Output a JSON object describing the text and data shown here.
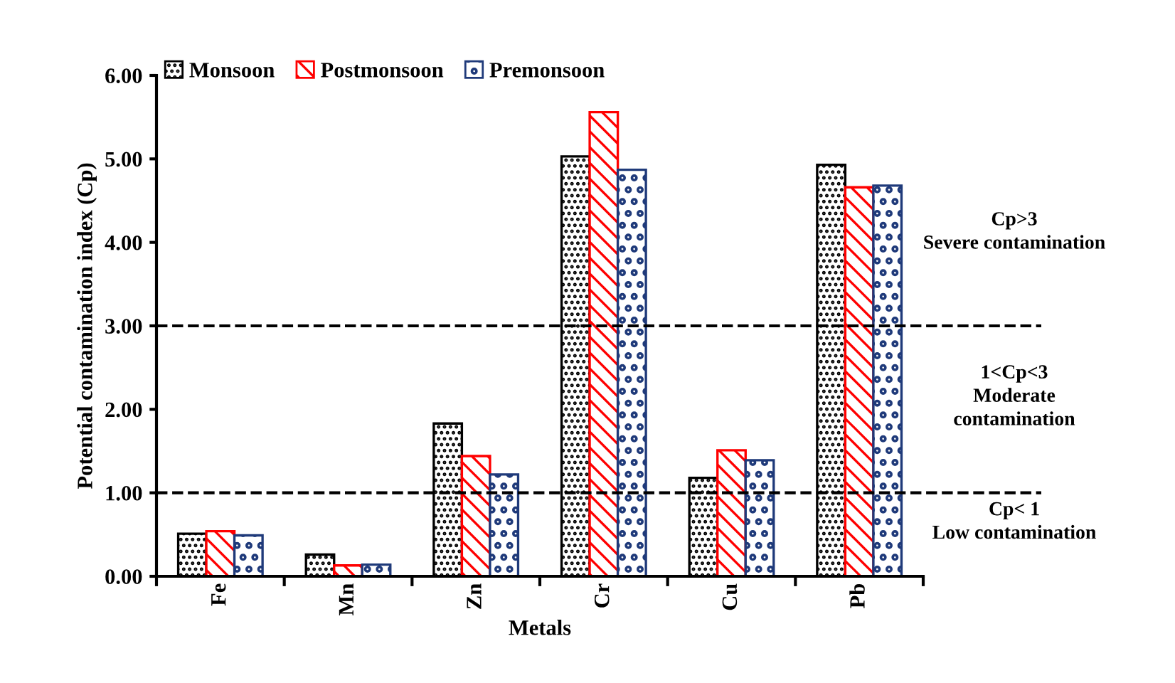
{
  "chart_data": {
    "type": "bar",
    "xlabel": "Metals",
    "ylabel": "Potential contamination index (Cp)",
    "categories": [
      "Fe",
      "Mn",
      "Zn",
      "Cr",
      "Cu",
      "Pb"
    ],
    "series": [
      {
        "name": "Monsoon",
        "color": "#000000",
        "values": [
          0.51,
          0.26,
          1.83,
          5.03,
          1.18,
          4.93
        ]
      },
      {
        "name": "Postmonsoon",
        "color": "#ff0000",
        "values": [
          0.54,
          0.13,
          1.44,
          5.56,
          1.51,
          4.66
        ]
      },
      {
        "name": "Premonsoon",
        "color": "#1f3a7a",
        "values": [
          0.49,
          0.14,
          1.22,
          4.87,
          1.39,
          4.68
        ]
      }
    ],
    "ylim": [
      0,
      6
    ],
    "yticks": [
      {
        "value": 0,
        "label": "0.00"
      },
      {
        "value": 1,
        "label": "1.00"
      },
      {
        "value": 2,
        "label": "2.00"
      },
      {
        "value": 3,
        "label": "3.00"
      },
      {
        "value": 4,
        "label": "4.00"
      },
      {
        "value": 5,
        "label": "5.00"
      },
      {
        "value": 6,
        "label": "6.00"
      }
    ],
    "ref_lines": [
      {
        "axis": "y",
        "value": 3,
        "color": "#000000",
        "line_style": "dashed"
      },
      {
        "axis": "y",
        "value": 1,
        "color": "#000000",
        "line_style": "dashed"
      }
    ],
    "annotations": [
      "Cp>3\nSevere contamination",
      "1<Cp<3\nModerate\ncontamination",
      "Cp< 1\nLow contamination"
    ],
    "legend": "top left",
    "grid": false
  }
}
